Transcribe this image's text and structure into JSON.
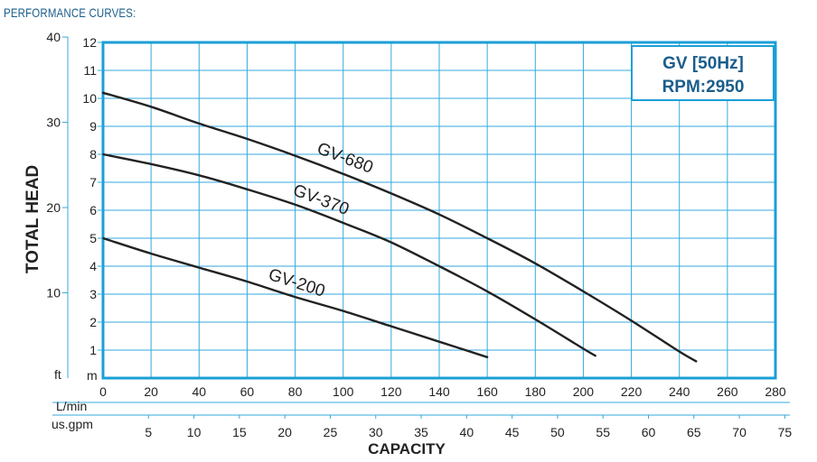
{
  "heading": "PERFORMANCE CURVES:",
  "chart_data": {
    "type": "line",
    "title": "",
    "badge": [
      "GV [50Hz]",
      "RPM:2950"
    ],
    "ylabel": "TOTAL HEAD",
    "xlabel": "CAPACITY",
    "y_unit_m": "m",
    "y_unit_ft": "ft",
    "x_unit_lmin": "L/min",
    "x_unit_gpm": "us.gpm",
    "ylim": [
      0,
      12
    ],
    "xlim": [
      0,
      280
    ],
    "y_ticks_m": [
      "1",
      "2",
      "3",
      "4",
      "5",
      "6",
      "7",
      "8",
      "9",
      "10",
      "11",
      "12"
    ],
    "y_ticks_ft": [
      "10",
      "20",
      "30",
      "40"
    ],
    "x_ticks_lmin": [
      "0",
      "20",
      "40",
      "60",
      "80",
      "100",
      "120",
      "140",
      "160",
      "180",
      "200",
      "220",
      "240",
      "260",
      "280"
    ],
    "x_ticks_gpm": [
      "5",
      "10",
      "15",
      "20",
      "25",
      "30",
      "35",
      "40",
      "45",
      "50",
      "55",
      "60",
      "65",
      "70",
      "75"
    ],
    "grid": true,
    "colors": {
      "frame": "#1a9fd6",
      "grid": "#36a9dd",
      "curve": "#222222",
      "badge": "#1a5e8c"
    },
    "series": [
      {
        "name": "GV-680",
        "x": [
          0,
          20,
          40,
          60,
          80,
          100,
          120,
          140,
          160,
          180,
          200,
          220,
          240,
          247
        ],
        "y": [
          10.2,
          9.7,
          9.1,
          8.55,
          7.95,
          7.3,
          6.6,
          5.85,
          5.0,
          4.1,
          3.1,
          2.05,
          0.95,
          0.6
        ]
      },
      {
        "name": "GV-370",
        "x": [
          0,
          20,
          40,
          60,
          80,
          100,
          120,
          140,
          160,
          180,
          200,
          205
        ],
        "y": [
          8.0,
          7.65,
          7.25,
          6.75,
          6.2,
          5.55,
          4.85,
          4.0,
          3.1,
          2.1,
          1.05,
          0.8
        ]
      },
      {
        "name": "GV-200",
        "x": [
          0,
          20,
          40,
          60,
          80,
          100,
          120,
          140,
          160
        ],
        "y": [
          5.0,
          4.45,
          3.95,
          3.45,
          2.9,
          2.4,
          1.85,
          1.3,
          0.75
        ]
      }
    ]
  }
}
